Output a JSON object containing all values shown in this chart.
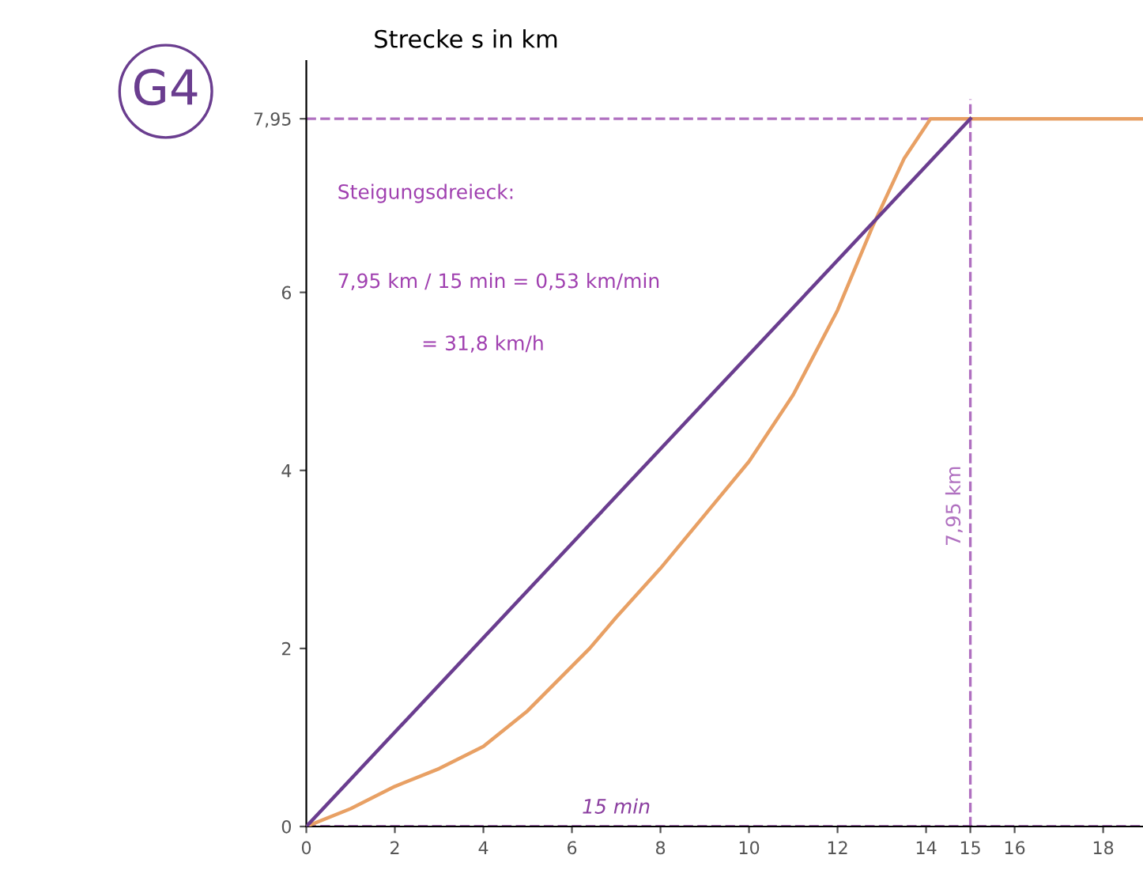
{
  "chart_data": {
    "type": "line",
    "ylabel": "Strecke s in km",
    "xlim": [
      0,
      18.9
    ],
    "ylim": [
      0,
      8.6
    ],
    "xticks": [
      0,
      2,
      4,
      6,
      8,
      10,
      12,
      14,
      {
        "value": 15,
        "label": "15"
      },
      16,
      18
    ],
    "yticks": [
      0,
      2,
      4,
      6,
      {
        "value": 7.95,
        "label": "7,95"
      }
    ],
    "series": [
      {
        "color": "#e8a064",
        "x": [
          0,
          1,
          2,
          3,
          4,
          5,
          6,
          6.4,
          7,
          8,
          9,
          10,
          11,
          12,
          12.8,
          13.5,
          14.1,
          18.9
        ],
        "values": [
          0,
          0.2,
          0.45,
          0.65,
          0.9,
          1.3,
          1.8,
          2.0,
          2.35,
          2.9,
          3.5,
          4.1,
          4.85,
          5.8,
          6.75,
          7.5,
          7.95,
          7.95
        ]
      },
      {
        "color": "#6a3d8f",
        "x": [
          0,
          15
        ],
        "values": [
          0,
          7.95
        ]
      }
    ],
    "ref_lines": [
      {
        "axis": "y",
        "value": 7.95,
        "label": null,
        "color": "#b070c0",
        "line_style": "dashed"
      },
      {
        "axis": "x",
        "value": 15,
        "label": "7,95 km",
        "color": "#b070c0",
        "line_style": "dashed"
      },
      {
        "axis": "y",
        "value": 0,
        "label": "15 min",
        "color": "#8a3d9f",
        "line_style": "dashed"
      }
    ],
    "annotations": [
      "G4",
      "Steigungsdreieck:",
      "7,95 km / 15 min = 0,53 km/min",
      "= 31,8 km/h"
    ],
    "grid": false,
    "marker": "none",
    "line_style": "solid"
  }
}
